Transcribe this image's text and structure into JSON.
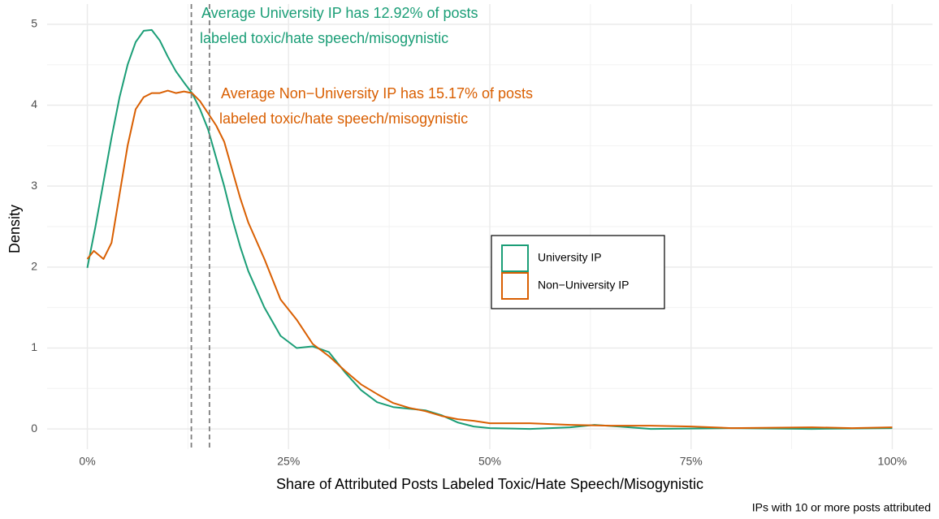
{
  "chart_data": {
    "type": "line",
    "x_label": "Share of Attributed Posts Labeled Toxic/Hate Speech/Misogynistic",
    "y_label": "Density",
    "caption": "IPs with 10 or more posts attributed",
    "xlim": [
      -5,
      105
    ],
    "ylim": [
      -0.25,
      5.25
    ],
    "xticks": [
      {
        "value": 0,
        "label": "0%"
      },
      {
        "value": 25,
        "label": "25%"
      },
      {
        "value": 50,
        "label": "50%"
      },
      {
        "value": 75,
        "label": "75%"
      },
      {
        "value": 100,
        "label": "100%"
      }
    ],
    "yticks": [
      0,
      1,
      2,
      3,
      4,
      5
    ],
    "x_minor_ticks": [
      12.5,
      37.5,
      62.5,
      87.5
    ],
    "y_minor_ticks": [
      0.5,
      1.5,
      2.5,
      3.5,
      4.5
    ],
    "grid": true,
    "legend": "center-right",
    "vlines": [
      12.92,
      15.17
    ],
    "series": [
      {
        "name": "University IP",
        "color": "#1b9e77",
        "x": [
          0,
          1,
          2,
          3,
          4,
          5,
          6,
          7,
          8,
          9,
          10,
          11,
          12,
          13,
          14,
          15,
          16,
          17,
          18,
          19,
          20,
          22,
          24,
          26,
          28,
          30,
          32,
          34,
          36,
          38,
          40,
          42,
          44,
          46,
          48,
          50,
          55,
          60,
          63,
          66,
          70,
          80,
          90,
          100
        ],
        "values": [
          1.99,
          2.5,
          3.05,
          3.6,
          4.1,
          4.5,
          4.78,
          4.92,
          4.93,
          4.8,
          4.6,
          4.42,
          4.28,
          4.15,
          3.95,
          3.7,
          3.35,
          3.0,
          2.6,
          2.25,
          1.95,
          1.5,
          1.15,
          1.0,
          1.02,
          0.95,
          0.7,
          0.48,
          0.33,
          0.27,
          0.25,
          0.23,
          0.17,
          0.08,
          0.03,
          0.01,
          0.0,
          0.02,
          0.05,
          0.03,
          0.0,
          0.01,
          0.0,
          0.01
        ]
      },
      {
        "name": "Non−University IP",
        "color": "#d95f02",
        "x": [
          0,
          0.8,
          2,
          3,
          4,
          5,
          6,
          7,
          8,
          9,
          10,
          11,
          12,
          13,
          14,
          15,
          16,
          17,
          18,
          19,
          20,
          22,
          24,
          26,
          28,
          30,
          32,
          34,
          36,
          38,
          40,
          42,
          44,
          46,
          48,
          50,
          55,
          60,
          65,
          70,
          75,
          80,
          90,
          95,
          100
        ],
        "values": [
          2.1,
          2.2,
          2.1,
          2.3,
          2.9,
          3.5,
          3.95,
          4.1,
          4.15,
          4.15,
          4.18,
          4.15,
          4.17,
          4.15,
          4.05,
          3.9,
          3.75,
          3.55,
          3.2,
          2.85,
          2.55,
          2.1,
          1.6,
          1.35,
          1.05,
          0.9,
          0.72,
          0.55,
          0.43,
          0.32,
          0.26,
          0.22,
          0.16,
          0.12,
          0.1,
          0.07,
          0.07,
          0.05,
          0.04,
          0.04,
          0.03,
          0.01,
          0.02,
          0.01,
          0.02
        ]
      }
    ],
    "annotations": [
      {
        "lines": [
          "Average University IP has 12.92% of posts",
          "labeled toxic/hate speech/misogynistic"
        ],
        "color": "#1b9e77"
      },
      {
        "lines": [
          "Average Non−University IP has 15.17% of posts",
          "labeled toxic/hate speech/misogynistic"
        ],
        "color": "#d95f02"
      }
    ]
  }
}
